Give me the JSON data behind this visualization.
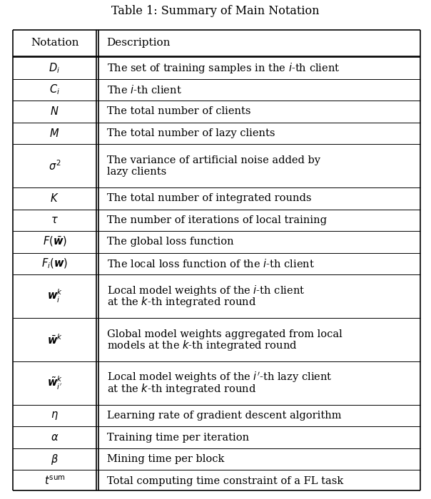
{
  "title": "Table 1: Summary of Main Notation",
  "col1_header": "Notation",
  "col2_header": "Description",
  "rows": [
    {
      "notation": "$D_i$",
      "description": "The set of training samples in the $i$-th client",
      "multiline": false
    },
    {
      "notation": "$C_i$",
      "description": "The $i$-th client",
      "multiline": false
    },
    {
      "notation": "$N$",
      "description": "The total number of clients",
      "multiline": false
    },
    {
      "notation": "$M$",
      "description": "The total number of lazy clients",
      "multiline": false
    },
    {
      "notation": "$\\sigma^2$",
      "description": "The variance of artificial noise added by\nlazy clients",
      "multiline": true
    },
    {
      "notation": "$K$",
      "description": "The total number of integrated rounds",
      "multiline": false
    },
    {
      "notation": "$\\tau$",
      "description": "The number of iterations of local training",
      "multiline": false
    },
    {
      "notation": "$F(\\bar{\\boldsymbol{w}})$",
      "description": "The global loss function",
      "multiline": false
    },
    {
      "notation": "$F_i(\\boldsymbol{w})$",
      "description": "The local loss function of the $i$-th client",
      "multiline": false
    },
    {
      "notation": "$\\boldsymbol{w}_i^k$",
      "description": "Local model weights of the $i$-th client\nat the $k$-th integrated round",
      "multiline": true
    },
    {
      "notation": "$\\bar{\\boldsymbol{w}}^k$",
      "description": "Global model weights aggregated from local\nmodels at the $k$-th integrated round",
      "multiline": true
    },
    {
      "notation": "$\\tilde{\\boldsymbol{w}}_{i'}^k$",
      "description": "Local model weights of the $i'$-th lazy client\nat the $k$-th integrated round",
      "multiline": true
    },
    {
      "notation": "$\\eta$",
      "description": "Learning rate of gradient descent algorithm",
      "multiline": false
    },
    {
      "notation": "$\\alpha$",
      "description": "Training time per iteration",
      "multiline": false
    },
    {
      "notation": "$\\beta$",
      "description": "Mining time per block",
      "multiline": false
    },
    {
      "notation": "$t^{\\mathrm{sum}}$",
      "description": "Total computing time constraint of a FL task",
      "multiline": false
    }
  ],
  "bg_color": "#ffffff",
  "line_color": "#000000",
  "title_fontsize": 11.5,
  "header_fontsize": 11,
  "cell_fontsize": 10.5,
  "fig_width": 6.04,
  "fig_height": 7.0,
  "dpi": 100
}
